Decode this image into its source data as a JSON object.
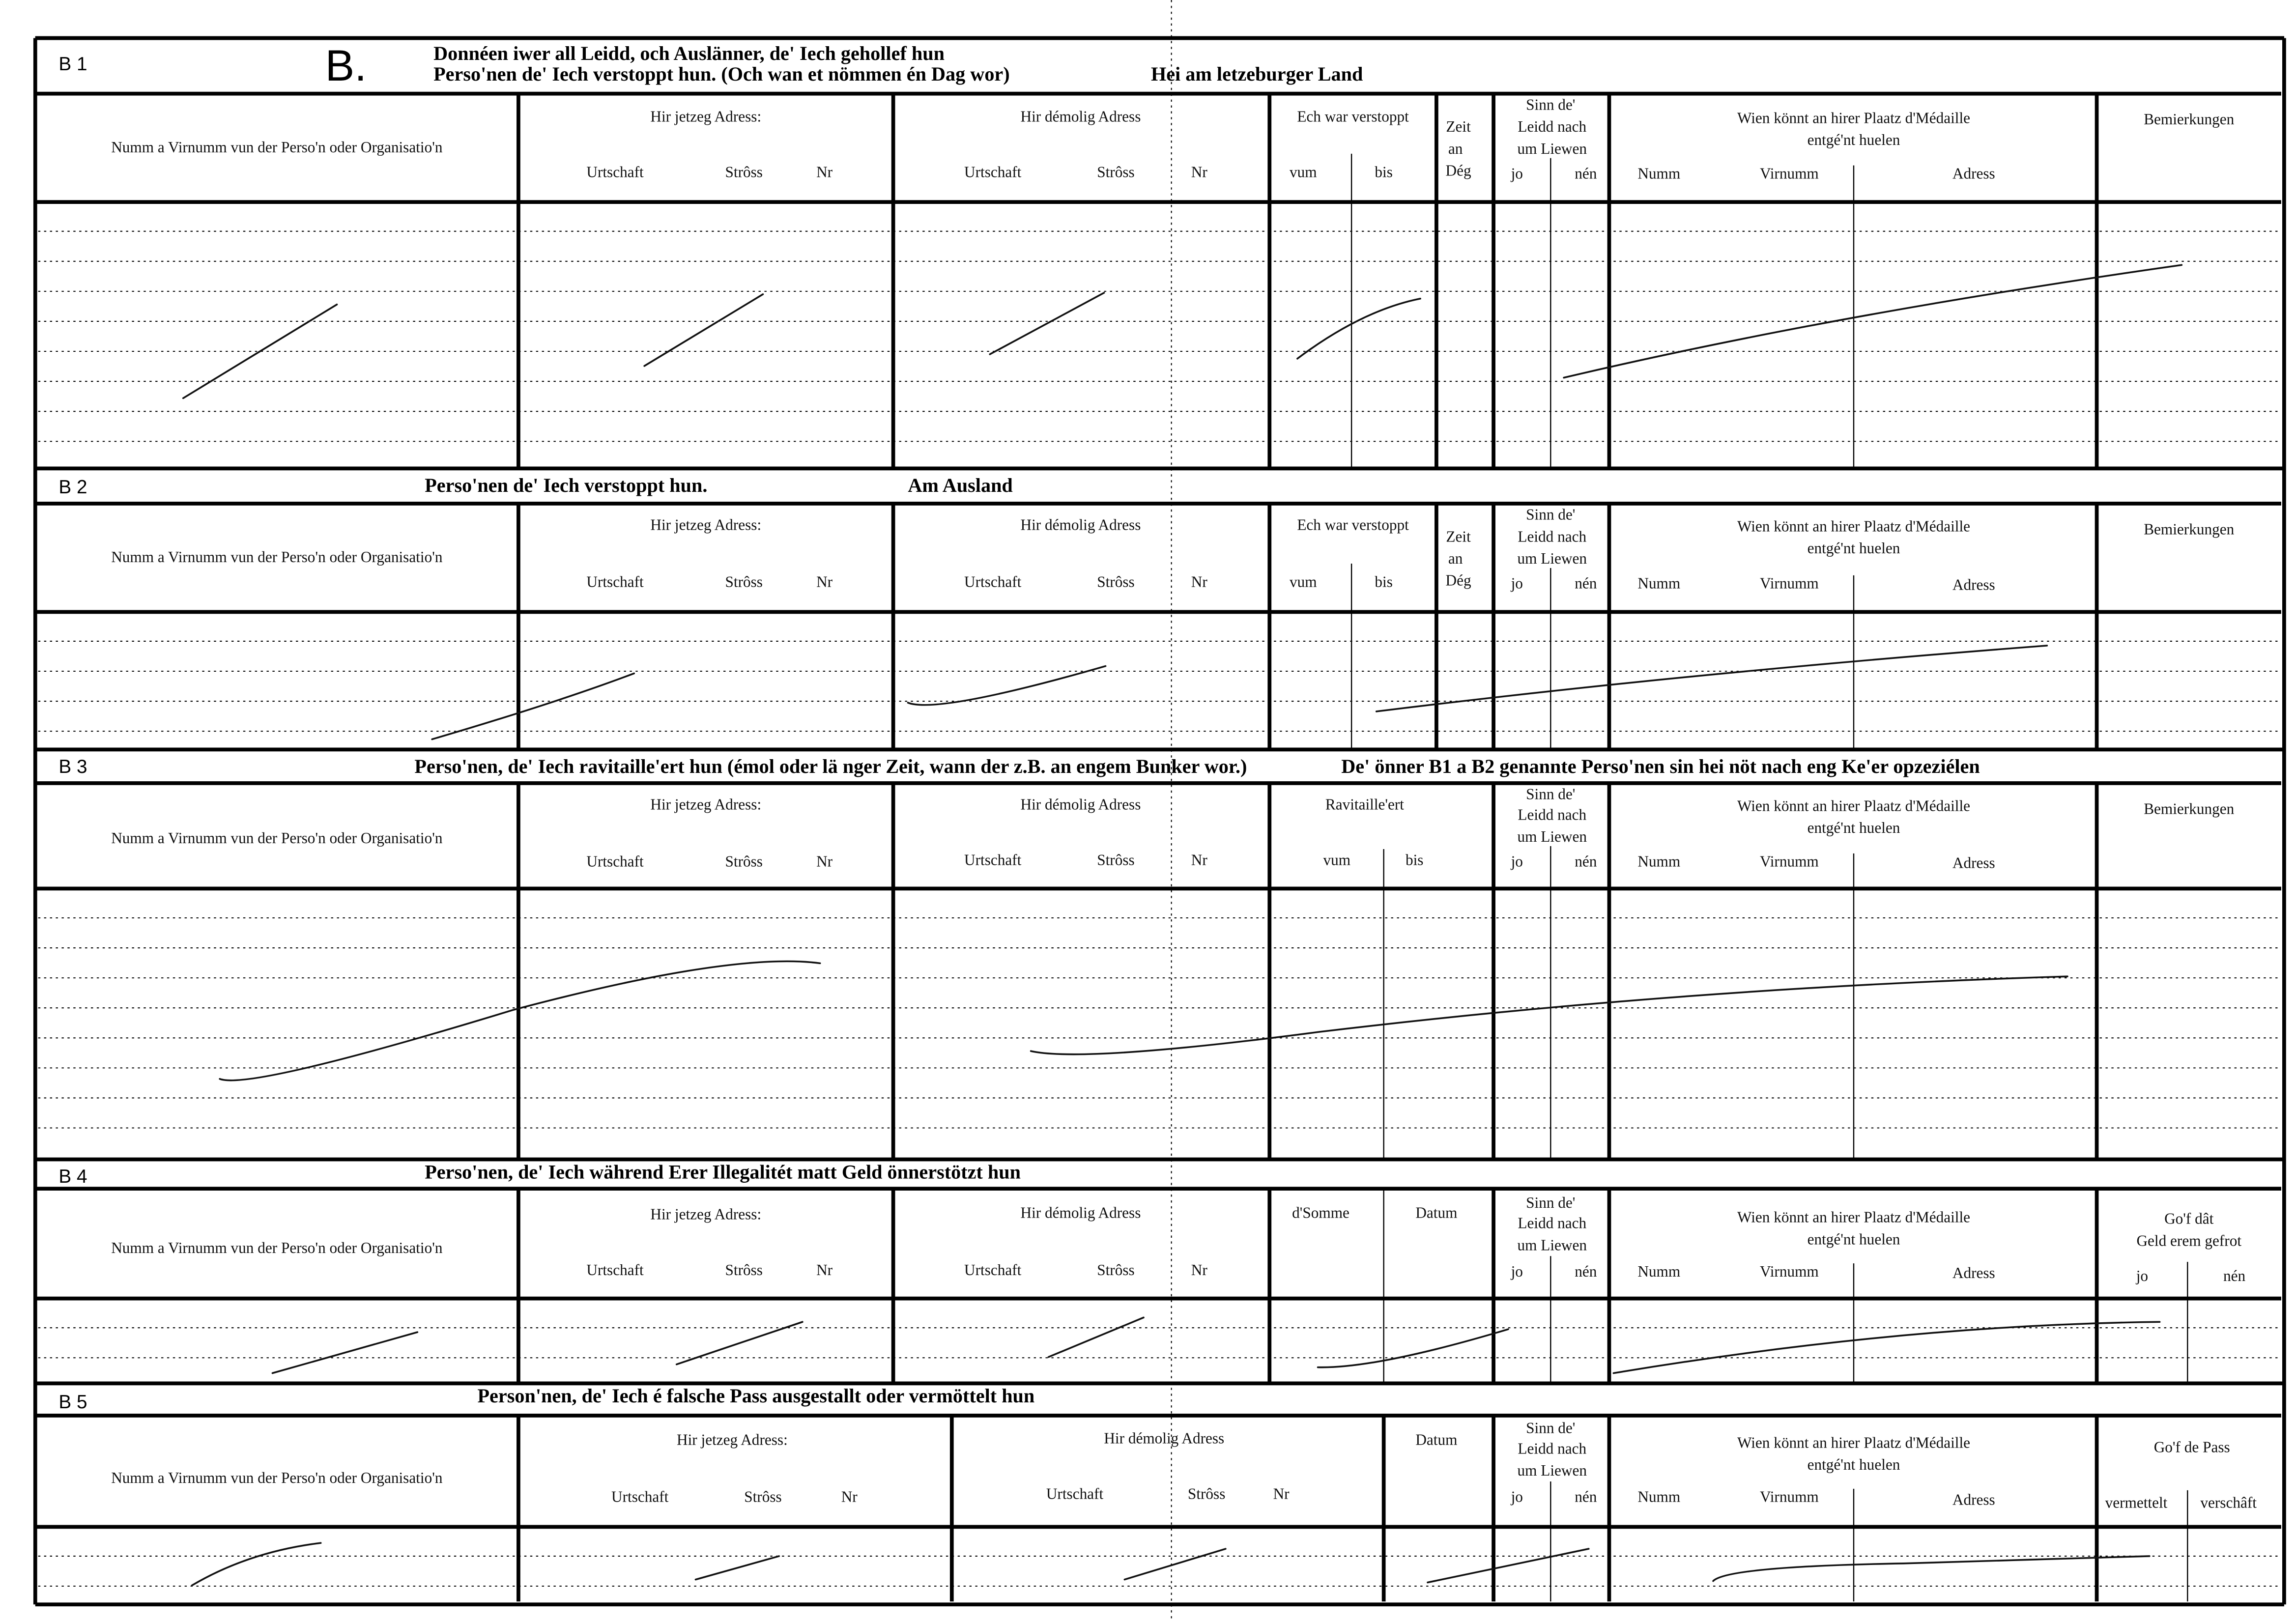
{
  "form_letter": "B.",
  "sections": [
    {
      "label": "B 1",
      "titles": [
        "Donnéen iwer all Leidd, och Auslänner, de' Iech gehollef hun",
        "Perso'nen de' Iech verstoppt hun. (Och wan et nömmen én Dag wor)",
        "Hei am letzeburger Land"
      ],
      "headers": [
        "Numm a Virnumm vun der Perso'n oder Organisatio'n",
        "Hir jetzeg Adress:",
        "Urtschaft",
        "Strôss",
        "Nr",
        "Hir démolig Adress",
        "Urtschaft",
        "Strôss",
        "Nr",
        "Ech war verstoppt",
        "vum",
        "bis",
        "Zeit",
        "an",
        "Dég",
        "Sinn de'",
        "Leidd nach",
        "um Liewen",
        "jo",
        "nén",
        "Wien könnt an hirer Plaatz d'Médaille",
        "entgé'nt huelen",
        "Numm",
        "Virnumm",
        "Adress",
        "Bemierkungen"
      ]
    },
    {
      "label": "B 2",
      "titles": [
        "Perso'nen de' Iech verstoppt hun.",
        "Am Ausland"
      ],
      "headers": [
        "Numm a Virnumm vun der Perso'n oder Organisatio'n",
        "Hir jetzeg Adress:",
        "Urtschaft",
        "Strôss",
        "Nr",
        "Hir démolig Adress",
        "Urtschaft",
        "Strôss",
        "Nr",
        "Ech war verstoppt",
        "vum",
        "bis",
        "Zeit",
        "an",
        "Dég",
        "Sinn de'",
        "Leidd nach",
        "um Liewen",
        "jo",
        "nén",
        "Wien könnt an hirer Plaatz d'Médaille",
        "entgé'nt huelen",
        "Numm",
        "Virnumm",
        "Adress",
        "Bemierkungen"
      ]
    },
    {
      "label": "B 3",
      "titles": [
        "Perso'nen, de' Iech ravitaille'ert hun (émol oder lä nger Zeit, wann der z.B. an engem Bunker wor.)",
        "De' önner B1 a B2 genannte Perso'nen sin hei nöt nach eng Ke'er opzeziélen"
      ],
      "headers": [
        "Numm a Virnumm vun der Perso'n oder Organisatio'n",
        "Hir jetzeg Adress:",
        "Urtschaft",
        "Strôss",
        "Nr",
        "Hir démolig Adress",
        "Urtschaft",
        "Strôss",
        "Nr",
        "Ravitaille'ert",
        "vum",
        "bis",
        "Sinn de'",
        "Leidd nach",
        "um Liewen",
        "jo",
        "nén",
        "Wien könnt an hirer Plaatz d'Médaille",
        "entgé'nt huelen",
        "Numm",
        "Virnumm",
        "Adress",
        "Bemierkungen"
      ]
    },
    {
      "label": "B 4",
      "titles": [
        "Perso'nen, de' Iech während Erer Illegalitét matt Geld önnerstötzt hun"
      ],
      "headers": [
        "Numm a Virnumm vun der Perso'n oder Organisatio'n",
        "Hir jetzeg Adress:",
        "Urtschaft",
        "Strôss",
        "Nr",
        "Hir démolig Adress",
        "Urtschaft",
        "Strôss",
        "Nr",
        "d'Somme",
        "Datum",
        "Sinn de'",
        "Leidd nach",
        "um Liewen",
        "jo",
        "nén",
        "Wien könnt an hirer Plaatz d'Médaille",
        "entgé'nt huelen",
        "Numm",
        "Virnumm",
        "Adress",
        "Go'f dât",
        "Geld erem gefrot",
        "jo",
        "nén"
      ]
    },
    {
      "label": "B 5",
      "titles": [
        "Person'nen, de' Iech é falsche Pass ausgestallt oder vermöttelt hun"
      ],
      "headers": [
        "Numm a Virnumm vun der Perso'n oder Organisatio'n",
        "Hir jetzeg Adress:",
        "Urtschaft",
        "Strôss",
        "Nr",
        "Hir démolig Adress",
        "Urtschaft",
        "Strôss",
        "Nr",
        "Datum",
        "Sinn de'",
        "Leidd nach",
        "um Liewen",
        "jo",
        "nén",
        "Wien könnt an hirer Plaatz d'Médaille",
        "entgé'nt huelen",
        "Numm",
        "Virnumm",
        "Adress",
        "Go'f de Pass",
        "vermettelt",
        "verschâft"
      ]
    }
  ]
}
